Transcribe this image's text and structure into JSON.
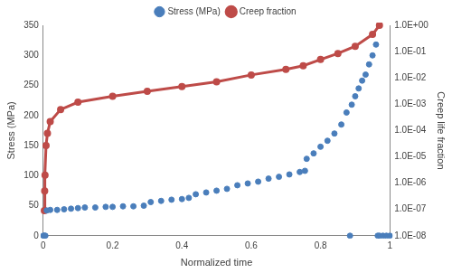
{
  "chart_data": {
    "type": "scatter",
    "x_label": "Normalized time",
    "y_label": "Stress (MPa)",
    "y2_label": "Creep life fraction",
    "xlim": [
      0,
      1
    ],
    "xticks": [
      0,
      0.2,
      0.4,
      0.6,
      0.8,
      1
    ],
    "ylim": [
      0,
      350
    ],
    "yticks": [
      0,
      50,
      100,
      150,
      200,
      250,
      300,
      350
    ],
    "y2lim": [
      1e-08,
      1
    ],
    "y2ticks": [
      {
        "value": 1e-08,
        "label": "1.0E-08"
      },
      {
        "value": 1e-07,
        "label": "1.0E-07"
      },
      {
        "value": 1e-06,
        "label": "1.0E-06"
      },
      {
        "value": 1e-05,
        "label": "1.0E-05"
      },
      {
        "value": 0.0001,
        "label": "1.0E-04"
      },
      {
        "value": 0.001,
        "label": "1.0E-03"
      },
      {
        "value": 0.01,
        "label": "1.0E-02"
      },
      {
        "value": 0.1,
        "label": "1.0E-01"
      },
      {
        "value": 1,
        "label": "1.0E+00"
      }
    ],
    "log": "y2",
    "grid": false,
    "legend": "top",
    "series": [
      {
        "name": "Stress (MPa)",
        "color": "#4a7ebb",
        "type": "scatter",
        "marker": "circle",
        "x": [
          0,
          0.003,
          0.006,
          0.01,
          0.02,
          0.04,
          0.06,
          0.08,
          0.1,
          0.12,
          0.15,
          0.18,
          0.2,
          0.23,
          0.26,
          0.29,
          0.31,
          0.34,
          0.37,
          0.4,
          0.42,
          0.44,
          0.47,
          0.5,
          0.53,
          0.56,
          0.59,
          0.62,
          0.65,
          0.68,
          0.71,
          0.74,
          0.755,
          0.76,
          0.78,
          0.8,
          0.82,
          0.84,
          0.86,
          0.875,
          0.885,
          0.89,
          0.9,
          0.91,
          0.92,
          0.93,
          0.94,
          0.95,
          0.96,
          0.965,
          0.97,
          0.98,
          0.99,
          1
        ],
        "values": [
          0,
          0,
          0,
          42,
          43,
          43,
          44,
          45,
          46,
          47,
          47,
          48,
          48,
          49,
          49,
          50,
          56,
          58,
          60,
          61,
          63,
          69,
          72,
          75,
          78,
          84,
          87,
          90,
          95,
          98,
          102,
          106,
          108,
          128,
          137,
          148,
          158,
          170,
          185,
          205,
          0,
          218,
          232,
          245,
          258,
          268,
          285,
          300,
          318,
          0,
          0,
          0,
          0,
          0
        ]
      },
      {
        "name": "Creep fraction",
        "color": "#be4b48",
        "type": "line",
        "marker": "circle",
        "line_style": "solid",
        "axis": "y2",
        "x": [
          0.003,
          0.004,
          0.005,
          0.008,
          0.012,
          0.02,
          0.05,
          0.1,
          0.2,
          0.3,
          0.4,
          0.5,
          0.6,
          0.7,
          0.75,
          0.8,
          0.85,
          0.9,
          0.95,
          0.97
        ],
        "values": [
          9e-08,
          5e-07,
          2e-06,
          2.7e-05,
          7.8e-05,
          0.00022,
          0.00063,
          0.0012,
          0.002,
          0.0031,
          0.0047,
          0.0071,
          0.013,
          0.021,
          0.029,
          0.05,
          0.085,
          0.16,
          0.45,
          1.0
        ]
      }
    ]
  }
}
